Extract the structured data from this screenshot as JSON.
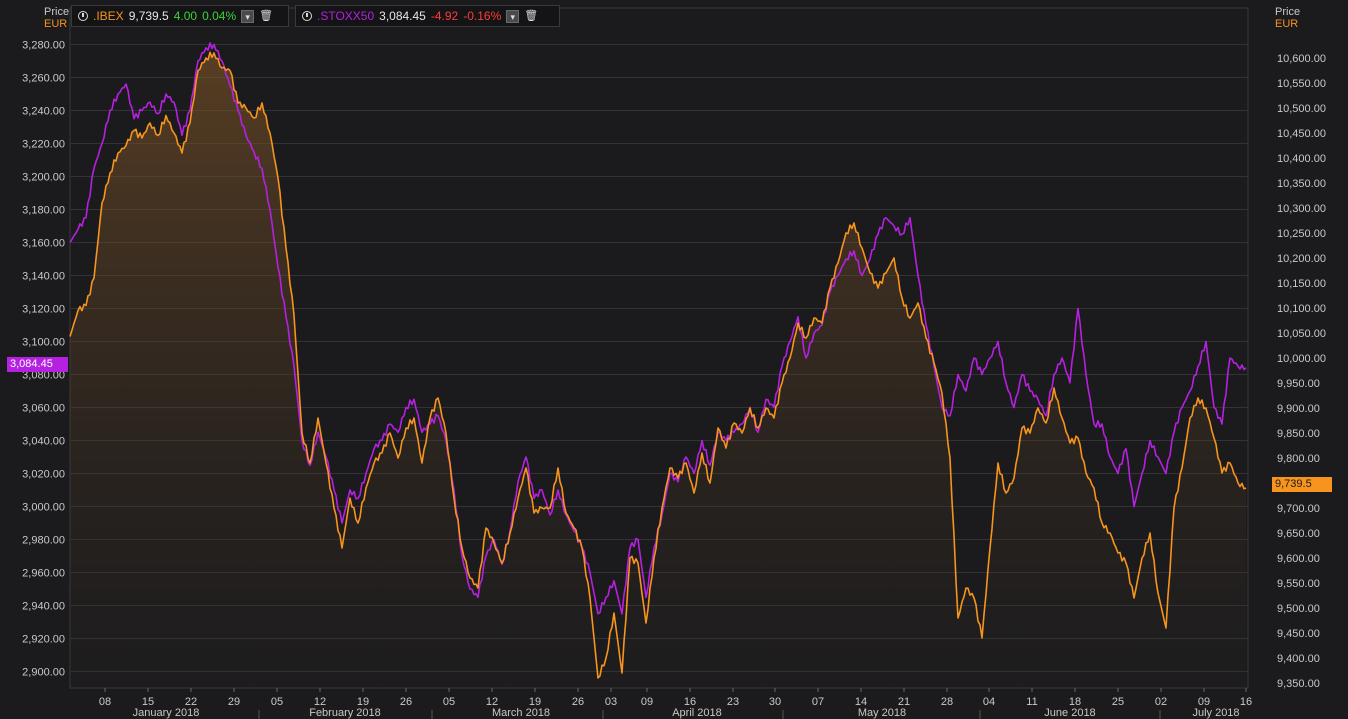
{
  "left_axis": {
    "title": "Price",
    "currency": "EUR"
  },
  "right_axis": {
    "title": "Price",
    "currency": "EUR"
  },
  "legend": [
    {
      "symbol": ".IBEX",
      "last": "9,739.5",
      "change": "4.00",
      "change_pct": "0.04%",
      "color": "#f7941d",
      "change_color": "#3bd13b"
    },
    {
      "symbol": ".STOXX50",
      "last": "3,084.45",
      "change": "-4.92",
      "change_pct": "-0.16%",
      "color": "#b620e0",
      "change_color": "#ff3b3b"
    }
  ],
  "tags": {
    "left": "3,084.45",
    "right": "9,739.5"
  },
  "colors": {
    "ibex": "#f7941d",
    "stoxx": "#b620e0",
    "background": "#1b1b1d",
    "grid": "#333336"
  },
  "chart_data": {
    "type": "line",
    "x_unit": "trading days, 2 Jan 2018 – 16 Jul 2018",
    "x_tick_labels": [
      "08",
      "15",
      "22",
      "29",
      "05",
      "12",
      "19",
      "26",
      "05",
      "12",
      "19",
      "26",
      "03",
      "09",
      "16",
      "23",
      "30",
      "07",
      "14",
      "21",
      "28",
      "04",
      "11",
      "18",
      "25",
      "02",
      "09",
      "16"
    ],
    "month_labels": [
      "January 2018",
      "February 2018",
      "March 2018",
      "April 2018",
      "May 2018",
      "June 2018",
      "July 2018"
    ],
    "y_left": {
      "label": "Price EUR",
      "range": [
        2890,
        3290
      ],
      "ticks": [
        2900,
        2920,
        2940,
        2960,
        2980,
        3000,
        3020,
        3040,
        3060,
        3080,
        3100,
        3120,
        3140,
        3160,
        3180,
        3200,
        3220,
        3240,
        3260,
        3280
      ]
    },
    "y_right": {
      "label": "Price EUR",
      "range": [
        9340,
        10660
      ],
      "ticks": [
        9350,
        9400,
        9450,
        9500,
        9550,
        9600,
        9650,
        9700,
        9750,
        9800,
        9850,
        9900,
        9950,
        10000,
        10050,
        10100,
        10150,
        10200,
        10250,
        10300,
        10350,
        10400,
        10450,
        10500,
        10550,
        10600
      ]
    },
    "grid": true,
    "series": [
      {
        "name": ".IBEX",
        "axis": "right",
        "style": "area",
        "values": [
          10043,
          10095,
          10105,
          10160,
          10310,
          10370,
          10410,
          10425,
          10455,
          10440,
          10470,
          10445,
          10485,
          10450,
          10410,
          10470,
          10575,
          10600,
          10610,
          10580,
          10575,
          10510,
          10500,
          10480,
          10510,
          10450,
          10360,
          10220,
          10085,
          9850,
          9790,
          9880,
          9790,
          9700,
          9620,
          9720,
          9670,
          9740,
          9790,
          9810,
          9850,
          9800,
          9860,
          9880,
          9790,
          9880,
          9920,
          9850,
          9720,
          9620,
          9560,
          9540,
          9660,
          9630,
          9590,
          9650,
          9720,
          9780,
          9690,
          9700,
          9700,
          9780,
          9690,
          9660,
          9620,
          9520,
          9360,
          9400,
          9490,
          9370,
          9600,
          9590,
          9470,
          9600,
          9700,
          9780,
          9760,
          9790,
          9730,
          9810,
          9750,
          9860,
          9820,
          9870,
          9850,
          9900,
          9860,
          9900,
          9880,
          9950,
          10000,
          10070,
          10040,
          10080,
          10070,
          10140,
          10190,
          10250,
          10270,
          10220,
          10170,
          10140,
          10170,
          10200,
          10120,
          10080,
          10110,
          10040,
          9990,
          9930,
          9800,
          9480,
          9540,
          9520,
          9440,
          9620,
          9790,
          9730,
          9760,
          9860,
          9850,
          9900,
          9870,
          9940,
          9880,
          9830,
          9840,
          9770,
          9740,
          9670,
          9650,
          9610,
          9590,
          9520,
          9600,
          9650,
          9530,
          9460,
          9700,
          9780,
          9880,
          9920,
          9900,
          9840,
          9770,
          9790,
          9750,
          9740
        ]
      },
      {
        "name": ".STOXX50",
        "axis": "left",
        "style": "line",
        "values": [
          3160,
          3168,
          3175,
          3205,
          3220,
          3240,
          3250,
          3256,
          3235,
          3240,
          3245,
          3238,
          3250,
          3245,
          3225,
          3240,
          3270,
          3278,
          3280,
          3270,
          3255,
          3240,
          3225,
          3215,
          3205,
          3180,
          3145,
          3115,
          3085,
          3040,
          3025,
          3045,
          3030,
          3010,
          2990,
          3010,
          3005,
          3020,
          3035,
          3040,
          3050,
          3045,
          3060,
          3065,
          3045,
          3050,
          3055,
          3040,
          3010,
          2970,
          2950,
          2945,
          2970,
          2980,
          2965,
          2985,
          3015,
          3030,
          3005,
          3010,
          2995,
          3010,
          2995,
          2985,
          2975,
          2960,
          2935,
          2945,
          2955,
          2935,
          2975,
          2980,
          2945,
          2975,
          2995,
          3020,
          3015,
          3030,
          3020,
          3040,
          3025,
          3045,
          3040,
          3045,
          3050,
          3060,
          3045,
          3065,
          3060,
          3085,
          3100,
          3115,
          3090,
          3105,
          3110,
          3130,
          3140,
          3150,
          3155,
          3140,
          3150,
          3165,
          3175,
          3170,
          3165,
          3175,
          3140,
          3110,
          3085,
          3060,
          3055,
          3080,
          3070,
          3090,
          3080,
          3090,
          3100,
          3075,
          3060,
          3080,
          3070,
          3065,
          3055,
          3080,
          3090,
          3075,
          3120,
          3080,
          3050,
          3050,
          3030,
          3020,
          3035,
          3000,
          3020,
          3040,
          3030,
          3020,
          3045,
          3060,
          3070,
          3085,
          3100,
          3060,
          3050,
          3090,
          3085,
          3084
        ]
      }
    ]
  }
}
